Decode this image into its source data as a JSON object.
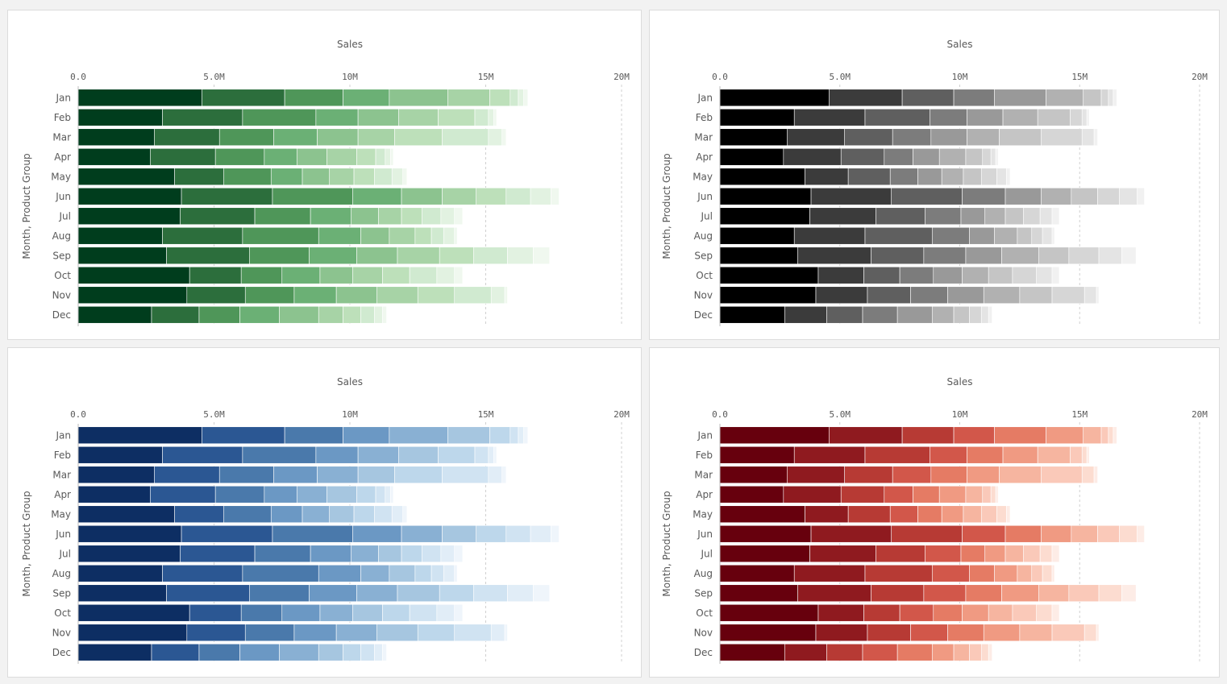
{
  "chart_data": [
    {
      "type": "bar",
      "orientation": "horizontal",
      "stacked": true,
      "palette": "greens",
      "colors": [
        "#003d1d",
        "#2c6e3c",
        "#4f9659",
        "#6bb075",
        "#8cc38f",
        "#a7d3a6",
        "#bde0ba",
        "#d0ead0",
        "#e2f2e1",
        "#f0f8ef"
      ],
      "title": "Sales",
      "ylabel": "Month,  Product Group",
      "xlim": [
        0,
        20000000
      ],
      "xticks": [
        "0.0",
        "5.0M",
        "10M",
        "15M",
        "20M"
      ],
      "categories": [
        "Jan",
        "Feb",
        "Mar",
        "Apr",
        "May",
        "Jun",
        "Jul",
        "Aug",
        "Sep",
        "Oct",
        "Nov",
        "Dec"
      ]
    },
    {
      "type": "bar",
      "orientation": "horizontal",
      "stacked": true,
      "palette": "greys",
      "colors": [
        "#000000",
        "#3b3b3b",
        "#5f5f5f",
        "#7c7c7c",
        "#999999",
        "#b1b1b1",
        "#c5c5c5",
        "#d6d6d6",
        "#e4e4e4",
        "#f1f1f1"
      ],
      "title": "Sales",
      "ylabel": "Month,  Product Group",
      "xlim": [
        0,
        20000000
      ],
      "xticks": [
        "0.0",
        "5.0M",
        "10M",
        "15M",
        "20M"
      ],
      "categories": [
        "Jan",
        "Feb",
        "Mar",
        "Apr",
        "May",
        "Jun",
        "Jul",
        "Aug",
        "Sep",
        "Oct",
        "Nov",
        "Dec"
      ]
    },
    {
      "type": "bar",
      "orientation": "horizontal",
      "stacked": true,
      "palette": "blues",
      "colors": [
        "#0d2e63",
        "#2b5793",
        "#4a79ab",
        "#6b98c4",
        "#89b0d3",
        "#a6c6e0",
        "#bdd7eb",
        "#d0e3f2",
        "#e1edf7",
        "#eff5fb"
      ],
      "title": "Sales",
      "ylabel": "Month,  Product Group",
      "xlim": [
        0,
        20000000
      ],
      "xticks": [
        "0.0",
        "5.0M",
        "10M",
        "15M",
        "20M"
      ],
      "categories": [
        "Jan",
        "Feb",
        "Mar",
        "Apr",
        "May",
        "Jun",
        "Jul",
        "Aug",
        "Sep",
        "Oct",
        "Nov",
        "Dec"
      ]
    },
    {
      "type": "bar",
      "orientation": "horizontal",
      "stacked": true,
      "palette": "reds",
      "colors": [
        "#67000d",
        "#8f1a1f",
        "#b73a34",
        "#d2574a",
        "#e57b64",
        "#f09a82",
        "#f6b5a0",
        "#fac9b9",
        "#fcdcd0",
        "#fdecE6"
      ],
      "title": "Sales",
      "ylabel": "Month,  Product Group",
      "xlim": [
        0,
        20000000
      ],
      "xticks": [
        "0.0",
        "5.0M",
        "10M",
        "15M",
        "20M"
      ],
      "categories": [
        "Jan",
        "Feb",
        "Mar",
        "Apr",
        "May",
        "Jun",
        "Jul",
        "Aug",
        "Sep",
        "Oct",
        "Nov",
        "Dec"
      ]
    }
  ],
  "segments_by_month": [
    [
      4.55,
      3.05,
      2.15,
      1.7,
      2.15,
      1.55,
      0.75,
      0.3,
      0.2,
      0.15
    ],
    [
      3.1,
      2.95,
      2.7,
      1.55,
      1.5,
      1.45,
      1.35,
      0.5,
      0.2,
      0.1
    ],
    [
      2.8,
      2.4,
      2.0,
      1.6,
      1.5,
      1.35,
      1.75,
      1.7,
      0.5,
      0.15
    ],
    [
      2.65,
      2.4,
      1.8,
      1.2,
      1.1,
      1.1,
      0.7,
      0.35,
      0.2,
      0.1
    ],
    [
      3.55,
      1.8,
      1.75,
      1.15,
      1.0,
      0.9,
      0.75,
      0.65,
      0.4,
      0.15
    ],
    [
      3.8,
      3.35,
      2.95,
      1.8,
      1.5,
      1.25,
      1.1,
      0.9,
      0.75,
      0.3
    ],
    [
      3.75,
      2.75,
      2.05,
      1.5,
      1.0,
      0.85,
      0.75,
      0.7,
      0.5,
      0.3
    ],
    [
      3.1,
      2.95,
      2.8,
      1.55,
      1.05,
      0.95,
      0.6,
      0.45,
      0.4,
      0.1
    ],
    [
      3.25,
      3.05,
      2.2,
      1.75,
      1.5,
      1.55,
      1.25,
      1.25,
      0.95,
      0.6
    ],
    [
      4.1,
      1.9,
      1.5,
      1.4,
      1.2,
      1.1,
      1.0,
      1.0,
      0.65,
      0.3
    ],
    [
      4.0,
      2.15,
      1.8,
      1.55,
      1.5,
      1.5,
      1.35,
      1.35,
      0.5,
      0.1
    ],
    [
      2.7,
      1.75,
      1.5,
      1.45,
      1.45,
      0.9,
      0.65,
      0.5,
      0.3,
      0.15
    ]
  ]
}
